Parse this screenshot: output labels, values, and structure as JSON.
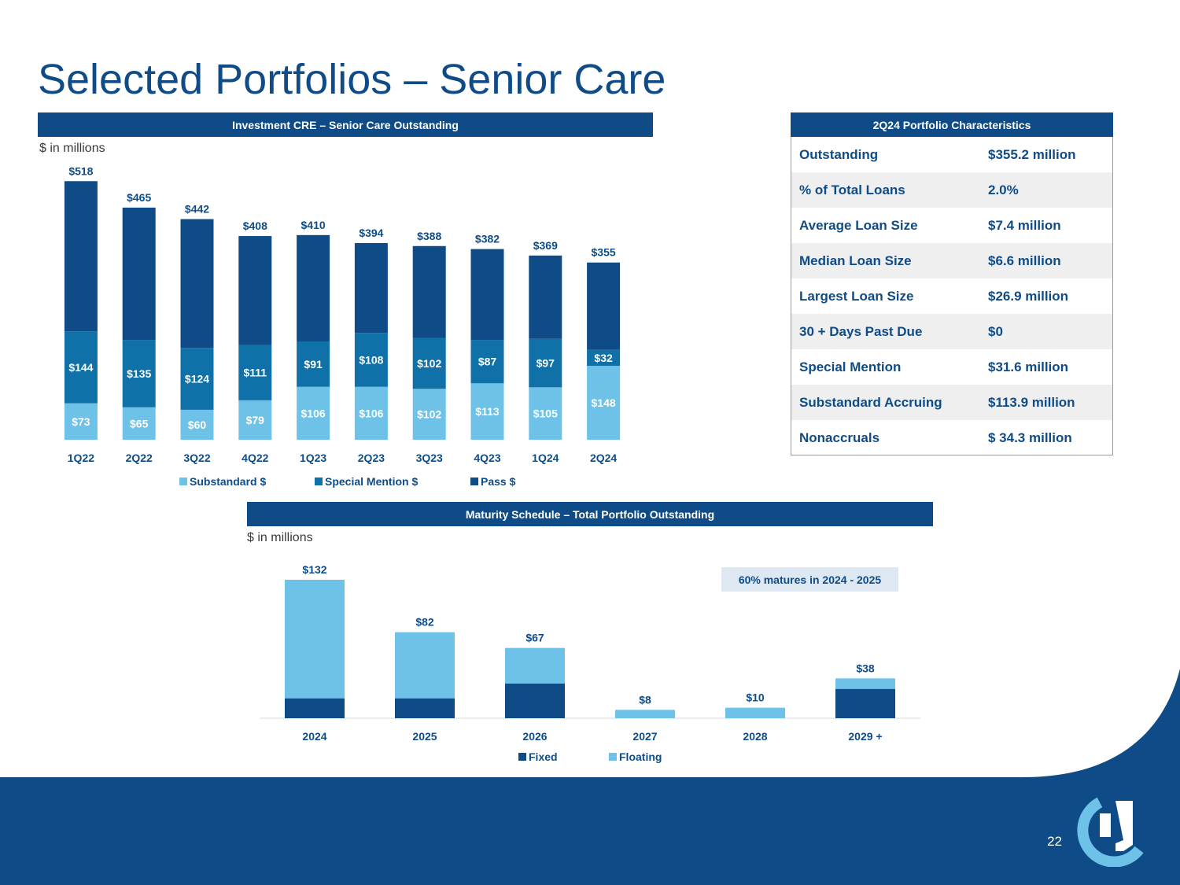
{
  "title": "Selected Portfolios – Senior Care",
  "page_number": "22",
  "colors": {
    "navy": "#0f4c87",
    "mid": "#1070a8",
    "light": "#6ec2e8"
  },
  "left_chart": {
    "header": "Investment CRE – Senior Care Outstanding",
    "units": "$ in millions"
  },
  "table": {
    "header": "2Q24 Portfolio Characteristics",
    "rows": [
      {
        "label": "Outstanding",
        "value": "$355.2 million"
      },
      {
        "label": "% of Total Loans",
        "value": "2.0%"
      },
      {
        "label": "Average Loan Size",
        "value": "$7.4 million"
      },
      {
        "label": "Median Loan Size",
        "value": "$6.6 million"
      },
      {
        "label": "Largest Loan Size",
        "value": "$26.9 million"
      },
      {
        "label": "30 + Days Past Due",
        "value": "$0"
      },
      {
        "label": "Special Mention",
        "value": "$31.6 million"
      },
      {
        "label": "Substandard Accruing",
        "value": "$113.9 million"
      },
      {
        "label": "Nonaccruals",
        "value": "$ 34.3 million"
      }
    ]
  },
  "maturity": {
    "header": "Maturity Schedule – Total Portfolio Outstanding",
    "units": "$ in millions",
    "callout": "60% matures in 2024 - 2025"
  },
  "chart_data": [
    {
      "type": "bar",
      "stacked": true,
      "title": "Investment CRE – Senior Care Outstanding",
      "ylabel": "$ in millions",
      "categories": [
        "1Q22",
        "2Q22",
        "3Q22",
        "4Q22",
        "1Q23",
        "2Q23",
        "3Q23",
        "4Q23",
        "1Q24",
        "2Q24"
      ],
      "series": [
        {
          "name": "Substandard $",
          "color": "#6ec2e8",
          "values": [
            73,
            65,
            60,
            79,
            106,
            106,
            102,
            113,
            105,
            148
          ],
          "labels": [
            "$73",
            "$65",
            "$60",
            "$79",
            "$106",
            "$106",
            "$102",
            "$113",
            "$105",
            "$148"
          ]
        },
        {
          "name": "Special Mention $",
          "color": "#1070a8",
          "values": [
            144,
            135,
            124,
            111,
            91,
            108,
            102,
            87,
            97,
            32
          ],
          "labels": [
            "$144",
            "$135",
            "$124",
            "$111",
            "$91",
            "$108",
            "$102",
            "$87",
            "$97",
            "$32"
          ]
        },
        {
          "name": "Pass $",
          "color": "#0f4c87",
          "values": [
            301,
            265,
            258,
            218,
            213,
            180,
            184,
            182,
            167,
            175
          ]
        }
      ],
      "totals": [
        518,
        465,
        442,
        408,
        410,
        394,
        388,
        382,
        369,
        355
      ],
      "total_labels": [
        "$518",
        "$465",
        "$442",
        "$408",
        "$410",
        "$394",
        "$388",
        "$382",
        "$369",
        "$355"
      ],
      "ylim": [
        0,
        520
      ],
      "legend": "bottom"
    },
    {
      "type": "bar",
      "stacked": true,
      "title": "Maturity Schedule – Total Portfolio Outstanding",
      "ylabel": "$ in millions",
      "categories": [
        "2024",
        "2025",
        "2026",
        "2027",
        "2028",
        "2029 +"
      ],
      "series": [
        {
          "name": "Fixed",
          "color": "#0f4c87",
          "values": [
            19,
            19,
            33,
            0,
            0,
            28
          ]
        },
        {
          "name": "Floating",
          "color": "#6ec2e8",
          "values": [
            113,
            63,
            34,
            8,
            10,
            10
          ]
        }
      ],
      "totals": [
        132,
        82,
        67,
        8,
        10,
        38
      ],
      "total_labels": [
        "$132",
        "$82",
        "$67",
        "$8",
        "$10",
        "$38"
      ],
      "ylim": [
        0,
        135
      ],
      "legend": "bottom"
    }
  ]
}
